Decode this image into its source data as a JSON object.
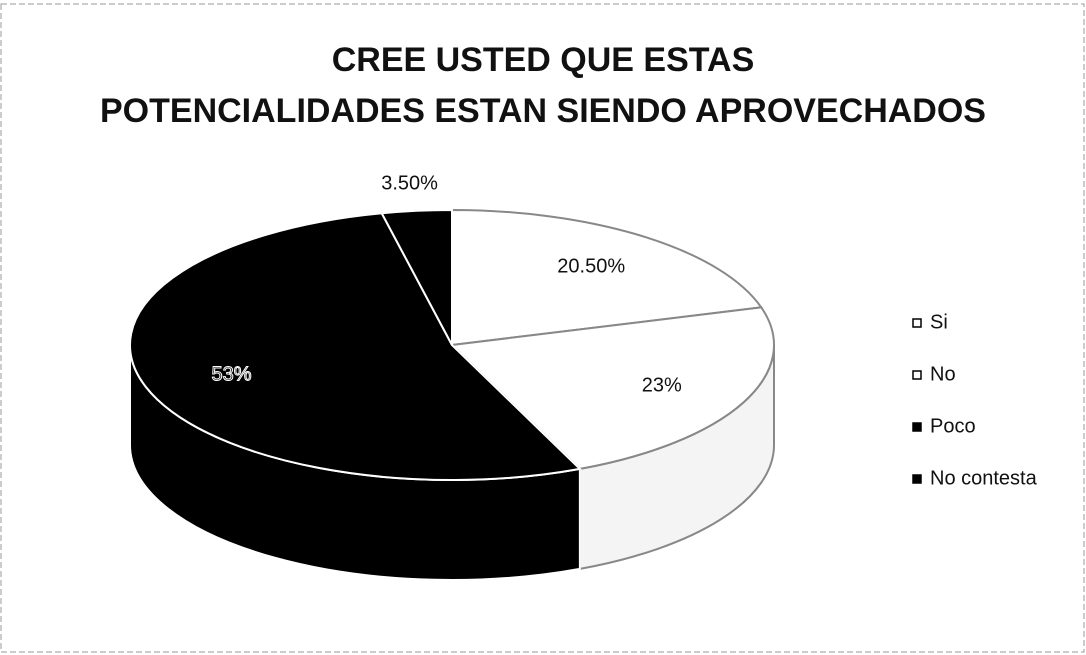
{
  "chart_data": {
    "type": "pie",
    "title": "CREE USTED QUE ESTAS POTENCIALIDADES ESTAN SIENDO APROVECHADOS",
    "categories": [
      "Si",
      "No",
      "Poco",
      "No contesta"
    ],
    "values": [
      20.5,
      23,
      53,
      3.5
    ],
    "value_labels": [
      "20.50%",
      "23%",
      "53%",
      "3.50%"
    ],
    "colors": [
      "#ffffff",
      "#ffffff",
      "#000000",
      "#000000"
    ],
    "legend": "right"
  }
}
